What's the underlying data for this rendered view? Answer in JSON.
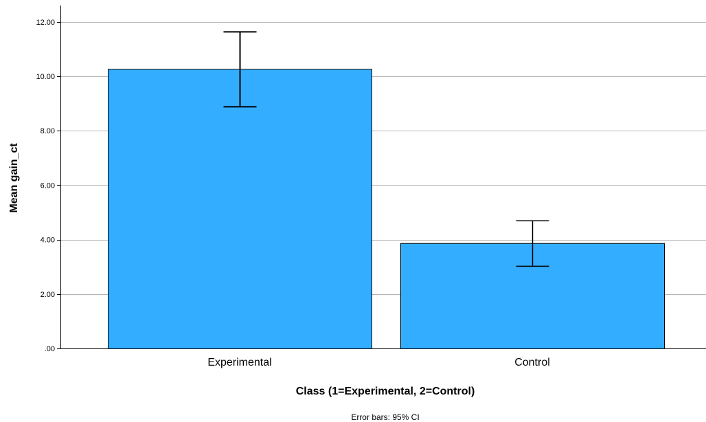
{
  "chart_data": {
    "type": "bar",
    "categories": [
      "Experimental",
      "Control"
    ],
    "values": [
      10.27,
      3.87
    ],
    "error_bars": {
      "lower": [
        8.88,
        3.02
      ],
      "upper": [
        11.63,
        4.69
      ]
    },
    "xlabel": "Class (1=Experimental, 2=Control)",
    "ylabel": "Mean gain_ct",
    "ylim": [
      0,
      12.6
    ],
    "yticks": [
      0,
      2,
      4,
      6,
      8,
      10,
      12
    ],
    "ytick_labels": [
      ".00",
      "2.00",
      "4.00",
      "6.00",
      "8.00",
      "10.00",
      "12.00"
    ],
    "grid": true,
    "legend": "none",
    "footnote": "Error bars: 95% CI",
    "colors": {
      "bar_fill": "#33adff",
      "bar_stroke": "#000000",
      "grid": "#b4b4b4",
      "axis": "#000000",
      "error_bar": "#000000"
    }
  }
}
